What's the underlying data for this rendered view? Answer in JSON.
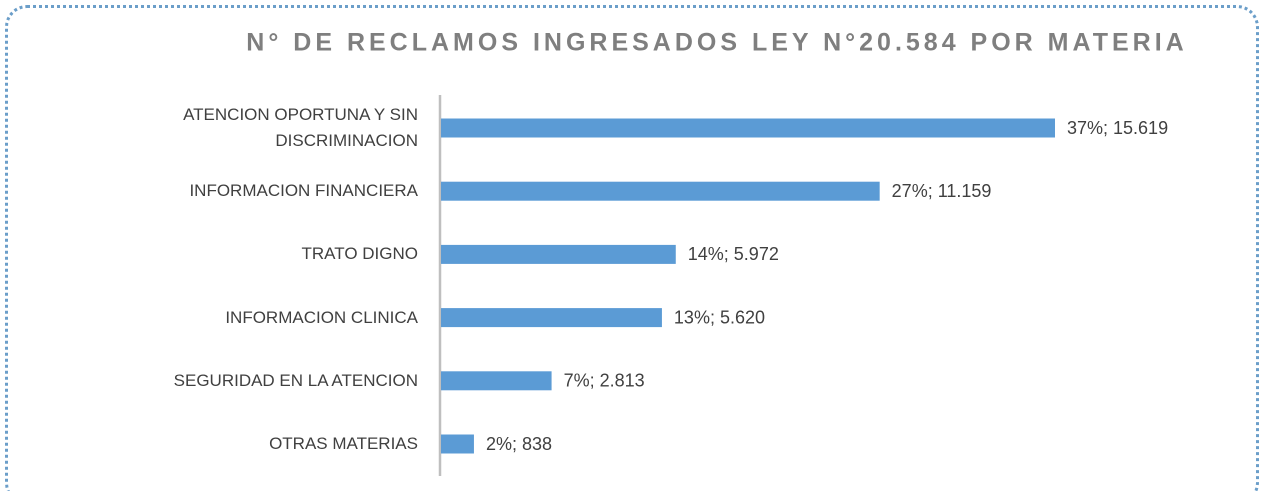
{
  "chart_data": {
    "type": "bar",
    "orientation": "horizontal",
    "title": "N° DE RECLAMOS INGRESADOS LEY N°20.584 POR MATERIA",
    "categories": [
      "ATENCION OPORTUNA Y SIN DISCRIMINACION",
      "INFORMACION FINANCIERA",
      "TRATO DIGNO",
      "INFORMACION CLINICA",
      "SEGURIDAD EN LA ATENCION",
      "OTRAS MATERIAS"
    ],
    "values": [
      15619,
      11159,
      5972,
      5620,
      2813,
      838
    ],
    "value_labels": [
      "37%; 15.619",
      "27%; 11.159",
      "14%; 5.972",
      "13%; 5.620",
      "7%; 2.813",
      "2%; 838"
    ],
    "color": "#5b9bd5"
  }
}
